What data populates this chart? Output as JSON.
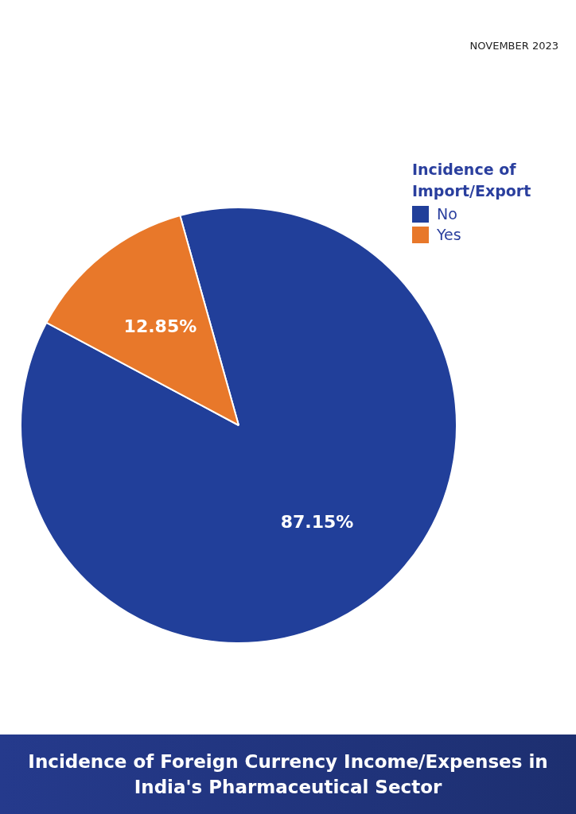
{
  "chart_data": {
    "type": "pie",
    "title": "Incidence of Foreign Currency Income/Expenses in India's Pharmaceutical Sector",
    "legend_title": "Incidence of Import/Export",
    "legend": "top right",
    "categories": [
      "No",
      "Yes"
    ],
    "values": [
      87.15,
      12.85
    ],
    "colors": [
      "#213f9a",
      "#e8782a"
    ],
    "value_labels": [
      "87.15%",
      "12.85%"
    ],
    "annotations": [
      "NOVEMBER 2023"
    ]
  }
}
